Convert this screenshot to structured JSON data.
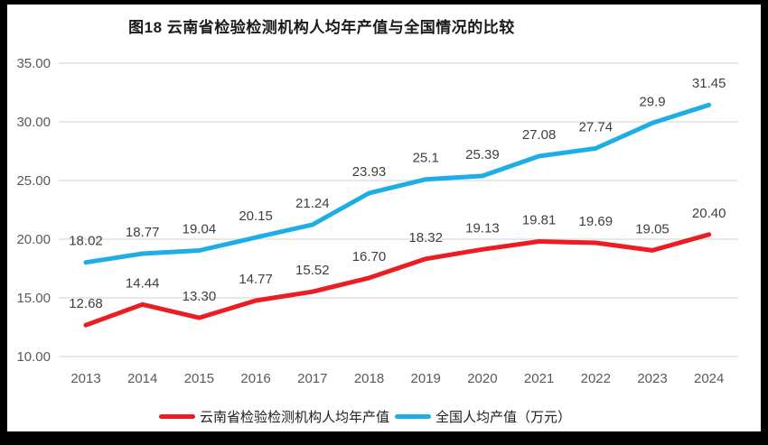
{
  "window": {
    "border_color": "#000000",
    "background_color": "#ffffff"
  },
  "chart_data": {
    "type": "line",
    "title": "图18  云南省检验检测机构人均年产值与全国情况的比较",
    "categories": [
      "2013",
      "2014",
      "2015",
      "2016",
      "2017",
      "2018",
      "2019",
      "2020",
      "2021",
      "2022",
      "2023",
      "2024"
    ],
    "series": [
      {
        "id": "yunnan",
        "name": "云南省检验检测机构人均年产值",
        "color": "#ec1c23",
        "values": [
          12.68,
          14.44,
          13.3,
          14.77,
          15.52,
          16.7,
          18.32,
          19.13,
          19.81,
          19.69,
          19.05,
          20.4
        ],
        "labels": [
          "12.68",
          "14.44",
          "13.30",
          "14.77",
          "15.52",
          "16.70",
          "18.32",
          "19.13",
          "19.81",
          "19.69",
          "19.05",
          "20.40"
        ]
      },
      {
        "id": "national",
        "name": "全国人均产值（万元）",
        "color": "#1fade6",
        "values": [
          18.02,
          18.77,
          19.04,
          20.15,
          21.24,
          23.93,
          25.1,
          25.39,
          27.08,
          27.74,
          29.9,
          31.45
        ],
        "labels": [
          "18.02",
          "18.77",
          "19.04",
          "20.15",
          "21.24",
          "23.93",
          "25.1",
          "25.39",
          "27.08",
          "27.74",
          "29.9",
          "31.45"
        ]
      }
    ],
    "y_axis": {
      "ticks": [
        "35.00",
        "30.00",
        "25.00",
        "20.00",
        "15.00",
        "10.00"
      ],
      "min": 10,
      "max": 35,
      "step": 5
    },
    "x_axis_label": "",
    "y_axis_label": "",
    "grid": "horizontal",
    "gridline_color": "#d9d9d9",
    "axis_text_color": "#595959",
    "data_label_color": "#3f3f3f",
    "legend_position": "bottom"
  }
}
